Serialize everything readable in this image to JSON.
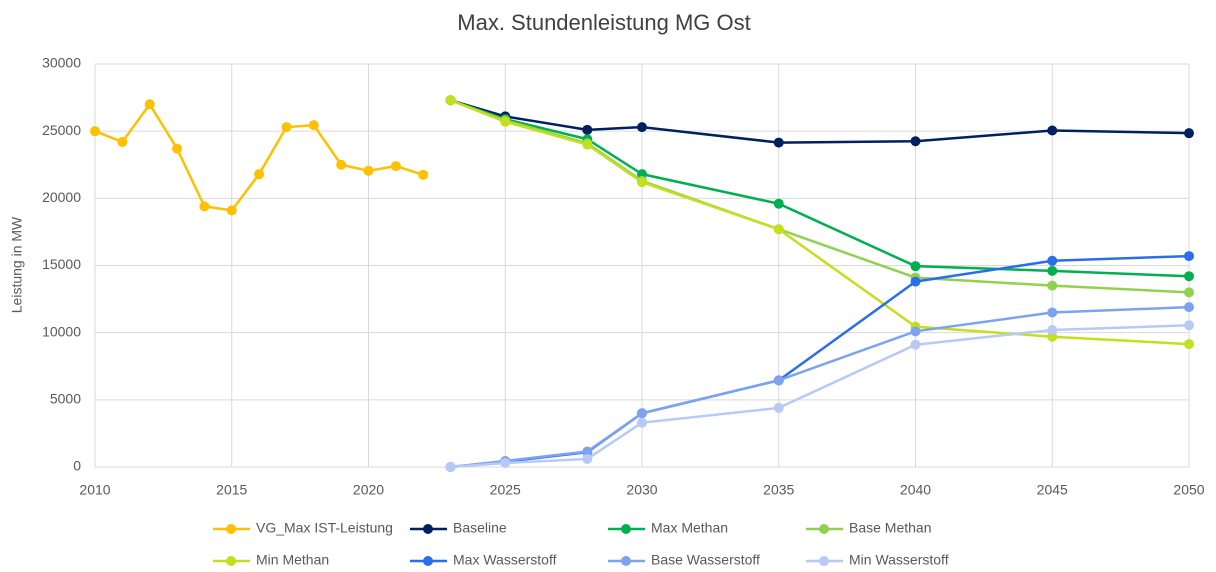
{
  "chart_data": {
    "type": "line",
    "title": "Max. Stundenleistung MG Ost",
    "y_label": "Leistung in MW",
    "xlim": [
      2010,
      2050
    ],
    "xticks": [
      2010,
      2015,
      2020,
      2025,
      2030,
      2035,
      2040,
      2045,
      2050
    ],
    "ylim": [
      0,
      30000
    ],
    "yticks": [
      0,
      5000,
      10000,
      15000,
      20000,
      25000,
      30000
    ],
    "grid": true,
    "legend": "bottom",
    "series": [
      {
        "name": "VG_Max IST-Leistung",
        "color": "#FFC000",
        "x": [
          2010,
          2011,
          2012,
          2013,
          2014,
          2015,
          2016,
          2017,
          2018,
          2019,
          2020,
          2021,
          2022
        ],
        "values": [
          25000,
          24200,
          27000,
          23700,
          19400,
          19100,
          21800,
          25300,
          25450,
          22500,
          22050,
          22400,
          21750
        ]
      },
      {
        "name": "Baseline",
        "color": "#002060",
        "x": [
          2023,
          2025,
          2028,
          2030,
          2035,
          2040,
          2045,
          2050
        ],
        "values": [
          27300,
          26100,
          25100,
          25300,
          24150,
          24250,
          25050,
          24850
        ]
      },
      {
        "name": "Max Methan",
        "color": "#00B050",
        "x": [
          2023,
          2025,
          2028,
          2030,
          2035,
          2040,
          2045,
          2050
        ],
        "values": [
          27300,
          25900,
          24400,
          21800,
          19600,
          14950,
          14600,
          14200
        ]
      },
      {
        "name": "Base Methan",
        "color": "#92D050",
        "x": [
          2023,
          2025,
          2028,
          2030,
          2035,
          2040,
          2045,
          2050
        ],
        "values": [
          27300,
          25800,
          24100,
          21300,
          17700,
          14100,
          13500,
          13000
        ]
      },
      {
        "name": "Min Methan",
        "color": "#C4DF1B",
        "x": [
          2023,
          2025,
          2028,
          2030,
          2035,
          2040,
          2045,
          2050
        ],
        "values": [
          27300,
          25700,
          24000,
          21200,
          17700,
          10450,
          9700,
          9150
        ]
      },
      {
        "name": "Max Wasserstoff",
        "color": "#2B6EEB",
        "x": [
          2023,
          2025,
          2028,
          2030,
          2035,
          2040,
          2045,
          2050
        ],
        "values": [
          0,
          400,
          1100,
          4000,
          6450,
          13800,
          15350,
          15700
        ]
      },
      {
        "name": "Base Wasserstoff",
        "color": "#7DA2EF",
        "x": [
          2023,
          2025,
          2028,
          2030,
          2035,
          2040,
          2045,
          2050
        ],
        "values": [
          0,
          450,
          1150,
          4000,
          6450,
          10100,
          11500,
          11900
        ]
      },
      {
        "name": "Min Wasserstoff",
        "color": "#B6CAF5",
        "x": [
          2023,
          2025,
          2028,
          2030,
          2035,
          2040,
          2045,
          2050
        ],
        "values": [
          0,
          300,
          600,
          3300,
          4400,
          9100,
          10200,
          10550
        ]
      }
    ]
  }
}
